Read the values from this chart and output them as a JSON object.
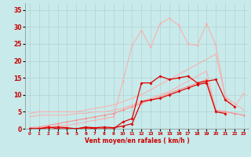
{
  "xlabel": "Vent moyen/en rafales ( km/h )",
  "background_color": "#c8eaea",
  "grid_color": "#aacccc",
  "x_values": [
    0,
    1,
    2,
    3,
    4,
    5,
    6,
    7,
    8,
    9,
    10,
    11,
    12,
    13,
    14,
    15,
    16,
    17,
    18,
    19,
    20,
    21,
    22,
    23
  ],
  "series": [
    {
      "name": "max_pink",
      "color": "#ffaaaa",
      "linewidth": 0.7,
      "marker": "D",
      "markersize": 1.5,
      "data": [
        0,
        0.3,
        0.5,
        0.8,
        1.0,
        1.5,
        2.0,
        2.5,
        3.0,
        3.5,
        14,
        24.5,
        29,
        24,
        31,
        32.5,
        30.5,
        25,
        24.5,
        31,
        24.5,
        9.5,
        6.5,
        10.5
      ]
    },
    {
      "name": "upper_diagonal",
      "color": "#ffaaaa",
      "linewidth": 0.7,
      "marker": null,
      "data": [
        4.5,
        5.0,
        5.0,
        5.0,
        5.0,
        5.0,
        5.5,
        6.0,
        6.5,
        7.0,
        8.0,
        9.0,
        10.0,
        11.5,
        13.0,
        14.5,
        16.0,
        17.5,
        19.0,
        20.5,
        22.0,
        9.5,
        7.5,
        5.5
      ]
    },
    {
      "name": "lower_diagonal",
      "color": "#ffaaaa",
      "linewidth": 0.7,
      "marker": null,
      "data": [
        3.5,
        4.0,
        4.0,
        4.0,
        4.0,
        4.5,
        4.5,
        5.0,
        5.0,
        5.5,
        6.0,
        7.0,
        8.0,
        9.0,
        10.0,
        11.0,
        12.5,
        14.0,
        15.5,
        17.0,
        5.0,
        5.0,
        4.5,
        4.0
      ]
    },
    {
      "name": "mid_pink_markers",
      "color": "#ff8888",
      "linewidth": 0.7,
      "marker": "D",
      "markersize": 1.5,
      "data": [
        0.3,
        0.5,
        1.0,
        1.5,
        2.0,
        2.5,
        3.0,
        3.5,
        4.0,
        4.5,
        5.5,
        6.5,
        7.5,
        8.5,
        9.5,
        10.5,
        11.5,
        12.5,
        13.5,
        14.5,
        5.5,
        5.0,
        4.5,
        4.0
      ]
    },
    {
      "name": "dark_red_upper",
      "color": "#dd0000",
      "linewidth": 0.9,
      "marker": "D",
      "markersize": 2.0,
      "data": [
        0,
        0,
        0.5,
        0,
        0,
        0,
        0.3,
        0,
        0,
        0,
        2.0,
        3.0,
        13.5,
        13.5,
        15.5,
        14.5,
        15.0,
        15.5,
        13.5,
        14.0,
        14.5,
        8.5,
        6.5,
        null
      ]
    },
    {
      "name": "dark_red_lower",
      "color": "#dd0000",
      "linewidth": 0.9,
      "marker": "D",
      "markersize": 2.0,
      "data": [
        0,
        0,
        0.3,
        0.5,
        0.3,
        0,
        0.5,
        0.3,
        0.5,
        0.3,
        0.8,
        1.5,
        8.0,
        8.5,
        9.0,
        10.0,
        11.0,
        12.0,
        13.0,
        13.5,
        5.0,
        4.5,
        null,
        null
      ]
    }
  ],
  "ylim": [
    0,
    37
  ],
  "xlim": [
    -0.5,
    23.5
  ],
  "yticks": [
    0,
    5,
    10,
    15,
    20,
    25,
    30,
    35
  ],
  "xticks": [
    0,
    1,
    2,
    3,
    4,
    5,
    6,
    7,
    8,
    9,
    10,
    11,
    12,
    13,
    14,
    15,
    16,
    17,
    18,
    19,
    20,
    21,
    22,
    23
  ]
}
